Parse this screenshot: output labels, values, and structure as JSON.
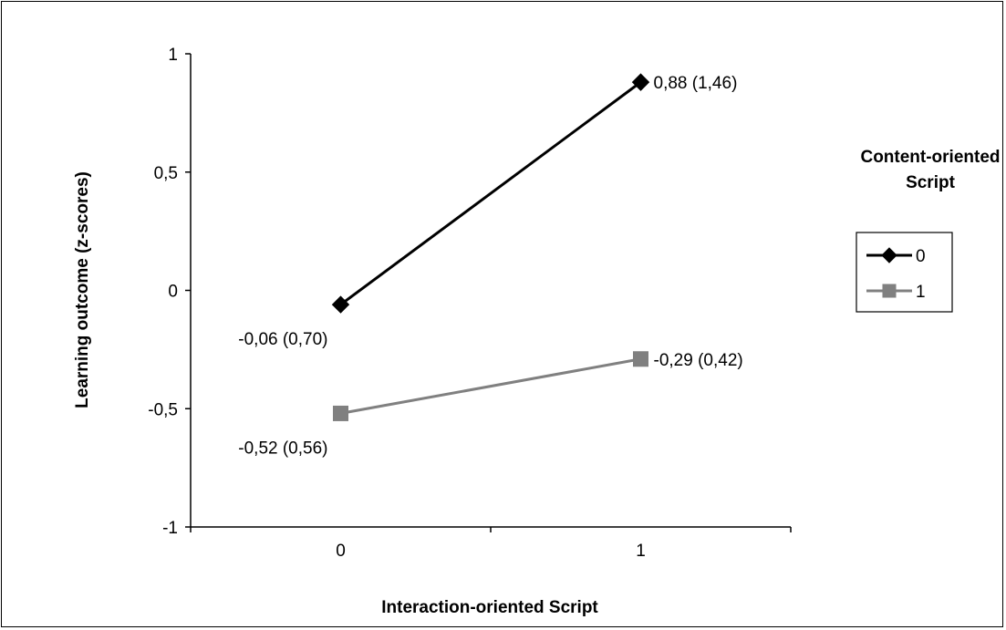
{
  "chart_data": {
    "type": "line",
    "xlabel": "Interaction-oriented Script",
    "ylabel": "Learning outcome (z-scores)",
    "categories": [
      "0",
      "1"
    ],
    "ylim": [
      -1,
      1
    ],
    "yticks": [
      1,
      0.5,
      0,
      -0.5,
      -1
    ],
    "ytick_labels": [
      "1",
      "0,5",
      "0",
      "-0,5",
      "-1"
    ],
    "grid": false,
    "legend": {
      "title": "Content-oriented Script",
      "title_lines": [
        "Content-oriented",
        "Script"
      ],
      "placement": "right"
    },
    "series": [
      {
        "name": "0",
        "marker": "diamond",
        "color": "#000000",
        "values": [
          -0.06,
          0.88
        ],
        "labels": [
          "-0,06 (0,70)",
          "0,88 (1,46)"
        ]
      },
      {
        "name": "1",
        "marker": "square",
        "color": "#808080",
        "values": [
          -0.52,
          -0.29
        ],
        "labels": [
          "-0,52 (0,56)",
          "-0,29 (0,42)"
        ]
      }
    ]
  }
}
